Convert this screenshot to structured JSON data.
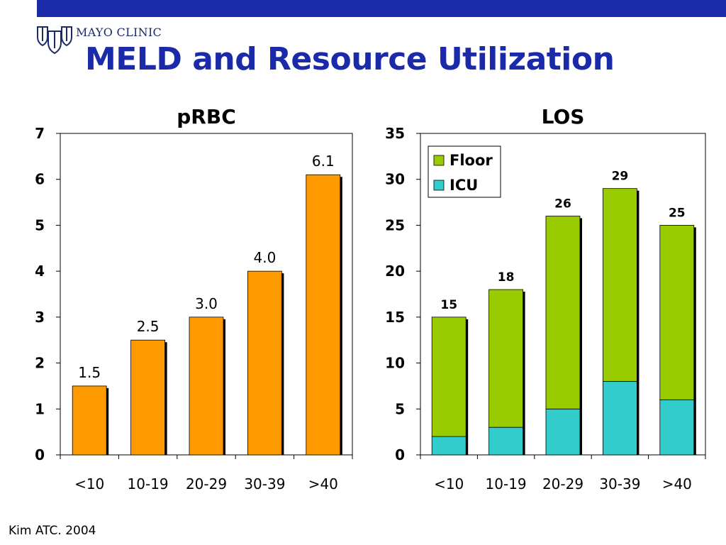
{
  "header": {
    "logo_text": "MAYO CLINIC",
    "title": "MELD and Resource Utilization",
    "accent_color": "#1a2aa8"
  },
  "icons": {
    "logo": "mayo-shields-icon"
  },
  "footer": {
    "citation": "Kim ATC. 2004"
  },
  "chart_data": [
    {
      "type": "bar",
      "title": "pRBC",
      "categories": [
        "<10",
        "10-19",
        "20-29",
        "30-39",
        ">40"
      ],
      "values": [
        1.5,
        2.5,
        3.0,
        4.0,
        6.1
      ],
      "value_labels": [
        "1.5",
        "2.5",
        "3.0",
        "4.0",
        "6.1"
      ],
      "ylim": [
        0,
        7
      ],
      "yticks": [
        "0",
        "1",
        "2",
        "3",
        "4",
        "5",
        "6",
        "7"
      ],
      "xlabel": "",
      "ylabel": "",
      "grid": false,
      "color": "#ff9900"
    },
    {
      "type": "bar",
      "stacked": true,
      "title": "LOS",
      "categories": [
        "<10",
        "10-19",
        "20-29",
        "30-39",
        ">40"
      ],
      "series": [
        {
          "name": "ICU",
          "values": [
            2,
            3,
            5,
            8,
            6
          ],
          "color": "#33cccc"
        },
        {
          "name": "Floor",
          "values": [
            13,
            15,
            21,
            21,
            19
          ],
          "color": "#99cc00"
        }
      ],
      "totals": [
        "15",
        "18",
        "26",
        "29",
        "25"
      ],
      "ylim": [
        0,
        35
      ],
      "yticks": [
        "0",
        "5",
        "10",
        "15",
        "20",
        "25",
        "30",
        "35"
      ],
      "xlabel": "",
      "ylabel": "",
      "grid": false,
      "legend": {
        "placement": "top-left",
        "entries": [
          "Floor",
          "ICU"
        ]
      }
    }
  ]
}
